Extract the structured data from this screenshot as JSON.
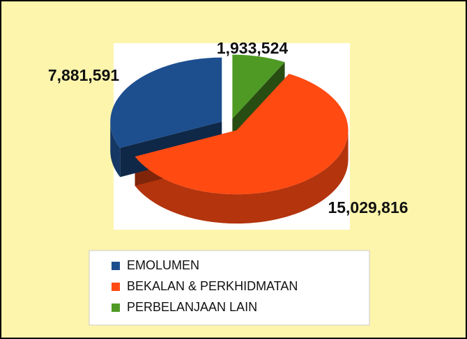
{
  "chart_data": {
    "type": "pie",
    "categories": [
      "EMOLUMEN",
      "BEKALAN & PERKHIDMATAN",
      "PERBELANJAAN LAIN"
    ],
    "values": [
      7881591,
      15029816,
      1933524
    ],
    "value_labels": [
      "7,881,591",
      "15,029,816",
      "1,933,524"
    ],
    "colors": [
      "#1d4f8f",
      "#ff4a12",
      "#4f9a24"
    ],
    "legend": "bottom"
  }
}
